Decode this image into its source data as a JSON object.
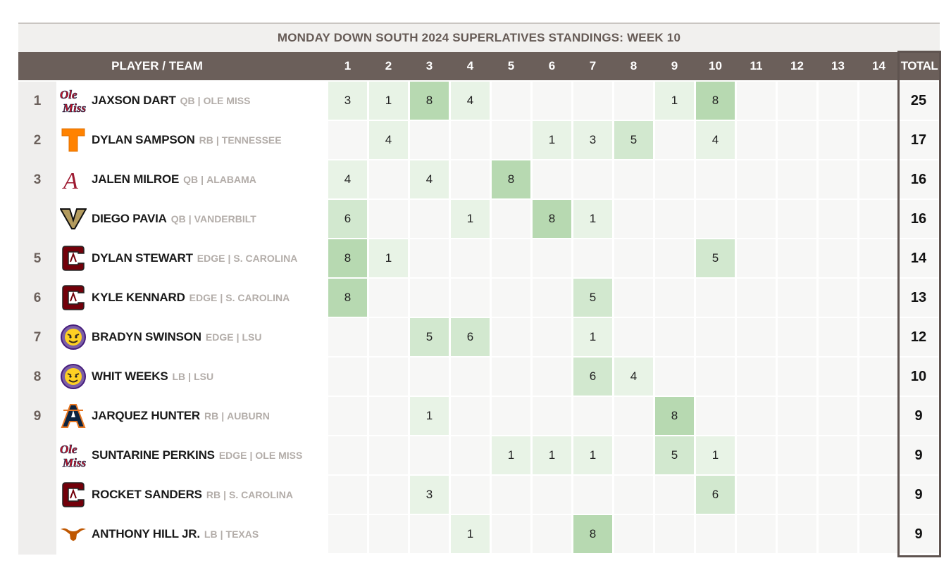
{
  "title": "MONDAY DOWN SOUTH 2024 SUPERLATIVES STANDINGS: WEEK 10",
  "header": {
    "player_team": "PLAYER / TEAM",
    "weeks": [
      "1",
      "2",
      "3",
      "4",
      "5",
      "6",
      "7",
      "8",
      "9",
      "10",
      "11",
      "12",
      "13",
      "14"
    ],
    "total": "TOTAL"
  },
  "colors": {
    "header_bg": "#6b5f5a",
    "light_cell": "#e8f3e6",
    "mid_cell": "#d2e8cf",
    "dark_cell": "#b7d9b1"
  },
  "players": [
    {
      "rank": "1",
      "name": "JAXSON DART",
      "pos": "QB",
      "team": "OLE MISS",
      "logo": "ole-miss-logo",
      "scores": [
        "3",
        "1",
        "8",
        "4",
        "",
        "",
        "",
        "",
        "1",
        "8",
        "",
        "",
        "",
        ""
      ],
      "total": "25"
    },
    {
      "rank": "2",
      "name": "DYLAN SAMPSON",
      "pos": "RB",
      "team": "TENNESSEE",
      "logo": "tennessee-logo",
      "scores": [
        "",
        "4",
        "",
        "",
        "",
        "1",
        "3",
        "5",
        "",
        "4",
        "",
        "",
        "",
        ""
      ],
      "total": "17"
    },
    {
      "rank": "3",
      "name": "JALEN MILROE",
      "pos": "QB",
      "team": "ALABAMA",
      "logo": "alabama-logo",
      "scores": [
        "4",
        "",
        "4",
        "",
        "8",
        "",
        "",
        "",
        "",
        "",
        "",
        "",
        "",
        ""
      ],
      "total": "16"
    },
    {
      "rank": "",
      "name": "DIEGO PAVIA",
      "pos": "QB",
      "team": "VANDERBILT",
      "logo": "vanderbilt-logo",
      "scores": [
        "6",
        "",
        "",
        "1",
        "",
        "8",
        "1",
        "",
        "",
        "",
        "",
        "",
        "",
        ""
      ],
      "total": "16"
    },
    {
      "rank": "5",
      "name": "DYLAN STEWART",
      "pos": "EDGE",
      "team": "S. CAROLINA",
      "logo": "south-carolina-logo",
      "scores": [
        "8",
        "1",
        "",
        "",
        "",
        "",
        "",
        "",
        "",
        "5",
        "",
        "",
        "",
        ""
      ],
      "total": "14"
    },
    {
      "rank": "6",
      "name": "KYLE KENNARD",
      "pos": "EDGE",
      "team": "S. CAROLINA",
      "logo": "south-carolina-logo",
      "scores": [
        "8",
        "",
        "",
        "",
        "",
        "",
        "5",
        "",
        "",
        "",
        "",
        "",
        "",
        ""
      ],
      "total": "13"
    },
    {
      "rank": "7",
      "name": "BRADYN SWINSON",
      "pos": "EDGE",
      "team": "LSU",
      "logo": "lsu-logo",
      "scores": [
        "",
        "",
        "5",
        "6",
        "",
        "",
        "1",
        "",
        "",
        "",
        "",
        "",
        "",
        ""
      ],
      "total": "12"
    },
    {
      "rank": "8",
      "name": "WHIT WEEKS",
      "pos": "LB",
      "team": "LSU",
      "logo": "lsu-logo",
      "scores": [
        "",
        "",
        "",
        "",
        "",
        "",
        "6",
        "4",
        "",
        "",
        "",
        "",
        "",
        ""
      ],
      "total": "10"
    },
    {
      "rank": "9",
      "name": "JARQUEZ HUNTER",
      "pos": "RB",
      "team": "AUBURN",
      "logo": "auburn-logo",
      "scores": [
        "",
        "",
        "1",
        "",
        "",
        "",
        "",
        "",
        "8",
        "",
        "",
        "",
        "",
        ""
      ],
      "total": "9"
    },
    {
      "rank": "",
      "name": "SUNTARINE PERKINS",
      "pos": "EDGE",
      "team": "OLE MISS",
      "logo": "ole-miss-logo",
      "scores": [
        "",
        "",
        "",
        "",
        "1",
        "1",
        "1",
        "",
        "5",
        "1",
        "",
        "",
        "",
        ""
      ],
      "total": "9"
    },
    {
      "rank": "",
      "name": "ROCKET SANDERS",
      "pos": "RB",
      "team": "S. CAROLINA",
      "logo": "south-carolina-logo",
      "scores": [
        "",
        "",
        "3",
        "",
        "",
        "",
        "",
        "",
        "",
        "6",
        "",
        "",
        "",
        ""
      ],
      "total": "9"
    },
    {
      "rank": "",
      "name": "ANTHONY HILL JR.",
      "pos": "LB",
      "team": "TEXAS",
      "logo": "texas-logo",
      "scores": [
        "",
        "",
        "",
        "1",
        "",
        "",
        "8",
        "",
        "",
        "",
        "",
        "",
        "",
        ""
      ],
      "total": "9"
    }
  ]
}
